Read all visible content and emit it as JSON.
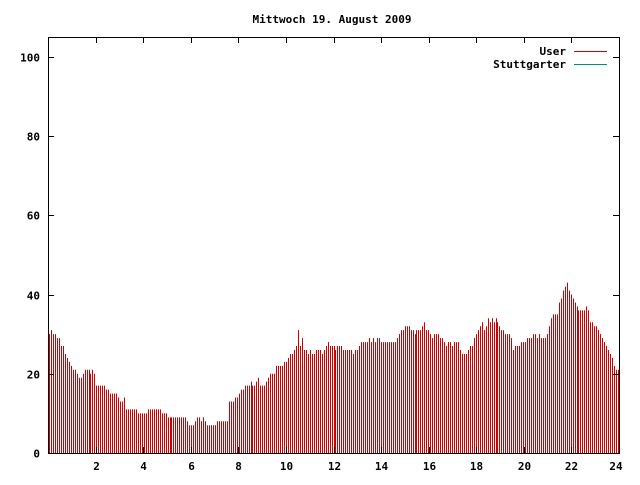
{
  "chart_data": {
    "type": "bar",
    "title": "Mittwoch 19. August 2009",
    "xlabel": "",
    "ylabel": "",
    "xlim": [
      0,
      24
    ],
    "ylim": [
      0,
      105
    ],
    "x_ticks": [
      2,
      4,
      6,
      8,
      10,
      12,
      14,
      16,
      18,
      20,
      22,
      24
    ],
    "y_ticks": [
      0,
      20,
      40,
      60,
      80,
      100
    ],
    "grid": false,
    "legend_position": "top-right",
    "colors": {
      "User": "#cc0000",
      "Stuttgarter": "#008b8b"
    },
    "series": [
      {
        "name": "User",
        "values": [
          30,
          31,
          30,
          30,
          29,
          29,
          27,
          27,
          25,
          24,
          23,
          22,
          21,
          21,
          20,
          19,
          19,
          20,
          21,
          21,
          21,
          20,
          21,
          20,
          17,
          17,
          17,
          17,
          17,
          16,
          16,
          15,
          15,
          15,
          15,
          14,
          13,
          13,
          14,
          11,
          11,
          11,
          11,
          11,
          11,
          10,
          10,
          10,
          10,
          10,
          11,
          11,
          11,
          11,
          11,
          11,
          11,
          10,
          10,
          10,
          9,
          9,
          9,
          9,
          9,
          9,
          9,
          9,
          9,
          9,
          8,
          7,
          7,
          7,
          8,
          9,
          9,
          8,
          9,
          8,
          7,
          7,
          7,
          7,
          7,
          8,
          8,
          8,
          8,
          8,
          8,
          13,
          13,
          13,
          14,
          14,
          15,
          16,
          16,
          17,
          17,
          17,
          18,
          17,
          17,
          18,
          19,
          17,
          17,
          17,
          18,
          19,
          20,
          20,
          20,
          22,
          22,
          22,
          22,
          23,
          23,
          24,
          25,
          25,
          26,
          27,
          31,
          27,
          29,
          26,
          26,
          25,
          26,
          25,
          25,
          26,
          26,
          26,
          25,
          26,
          27,
          28,
          27,
          27,
          27,
          26,
          27,
          27,
          27,
          26,
          26,
          26,
          26,
          26,
          25,
          26,
          26,
          27,
          28,
          28,
          28,
          28,
          29,
          28,
          29,
          28,
          29,
          29,
          28,
          28,
          28,
          28,
          28,
          28,
          28,
          28,
          29,
          30,
          31,
          31,
          32,
          32,
          32,
          31,
          31,
          30,
          31,
          31,
          31,
          32,
          33,
          31,
          31,
          30,
          29,
          30,
          30,
          30,
          29,
          29,
          28,
          27,
          28,
          28,
          27,
          28,
          28,
          28,
          26,
          25,
          25,
          25,
          26,
          27,
          27,
          29,
          30,
          31,
          32,
          33,
          31,
          32,
          34,
          33,
          34,
          33,
          34,
          33,
          32,
          31,
          31,
          30,
          30,
          30,
          29,
          26,
          27,
          27,
          27,
          28,
          28,
          28,
          29,
          29,
          29,
          30,
          30,
          29,
          30,
          29,
          29,
          29,
          30,
          32,
          34,
          35,
          35,
          35,
          38,
          39,
          41,
          42,
          43,
          41,
          40,
          39,
          38,
          37,
          36,
          36,
          36,
          36,
          37,
          36,
          33,
          33,
          32,
          32,
          31,
          30,
          29,
          28,
          27,
          26,
          25,
          24,
          22,
          21,
          21
        ]
      },
      {
        "name": "Stuttgarter",
        "values": []
      }
    ]
  }
}
